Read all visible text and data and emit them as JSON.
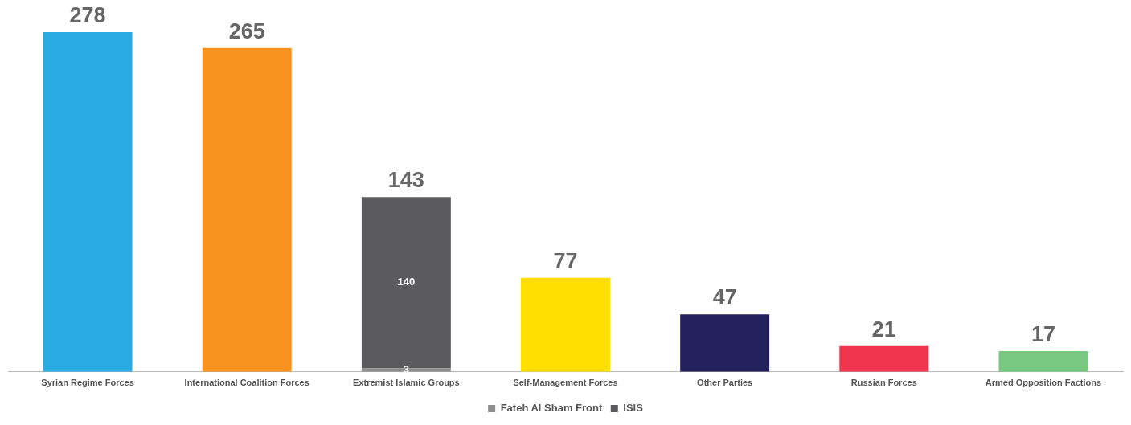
{
  "chart_data": {
    "type": "bar",
    "stacked": true,
    "categories": [
      "Syrian Regime Forces",
      "International Coalition Forces",
      "Extremist Islamic Groups",
      "Self-Management Forces",
      "Other Parties",
      "Russian Forces",
      "Armed Opposition Factions"
    ],
    "series": [
      {
        "name": "Fateh Al Sham Front",
        "color": "#8e8e8e",
        "values": [
          null,
          null,
          3,
          null,
          null,
          null,
          null
        ],
        "value_labels": [
          null,
          null,
          "3",
          null,
          null,
          null,
          null
        ]
      },
      {
        "name": "ISIS",
        "color": "#5b5b5d",
        "values": [
          null,
          null,
          140,
          null,
          null,
          null,
          null
        ],
        "value_labels": [
          null,
          null,
          "140",
          null,
          null,
          null,
          null
        ]
      },
      {
        "colors": [
          "#29abe2",
          "#f7931e",
          "#5b5b5d",
          "#ffde00",
          "#25215e",
          "#ef344e",
          "#76c97f"
        ],
        "values": [
          278,
          265,
          null,
          77,
          47,
          21,
          17
        ]
      }
    ],
    "totals": [
      "278",
      "265",
      "143",
      "77",
      "47",
      "21",
      "17"
    ],
    "legend": "bottom",
    "grid": false
  }
}
